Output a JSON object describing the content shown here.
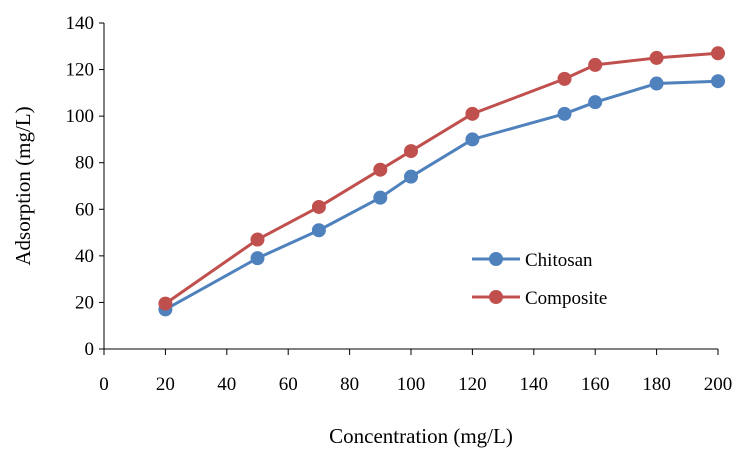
{
  "chart_data": {
    "type": "line",
    "title": "",
    "xlabel": "Concentration (mg/L)",
    "ylabel": "Adsorption (mg/L)",
    "xlim": [
      0,
      200
    ],
    "ylim": [
      0,
      140
    ],
    "x_ticks": [
      0,
      20,
      40,
      60,
      80,
      100,
      120,
      140,
      160,
      180,
      200
    ],
    "y_ticks": [
      0,
      20,
      40,
      60,
      80,
      100,
      120,
      140
    ],
    "grid": false,
    "legend_position": "right",
    "series": [
      {
        "name": "Chitosan",
        "color": "#4F81BD",
        "marker": "circle",
        "x": [
          20,
          50,
          70,
          90,
          100,
          120,
          150,
          160,
          180,
          200
        ],
        "y": [
          17,
          39,
          51,
          65,
          74,
          90,
          101,
          106,
          114,
          115
        ]
      },
      {
        "name": "Composite",
        "color": "#C0504D",
        "marker": "circle",
        "x": [
          20,
          50,
          70,
          90,
          100,
          120,
          150,
          160,
          180,
          200
        ],
        "y": [
          19.5,
          47,
          61,
          77,
          85,
          101,
          116,
          122,
          125,
          127
        ]
      }
    ]
  }
}
